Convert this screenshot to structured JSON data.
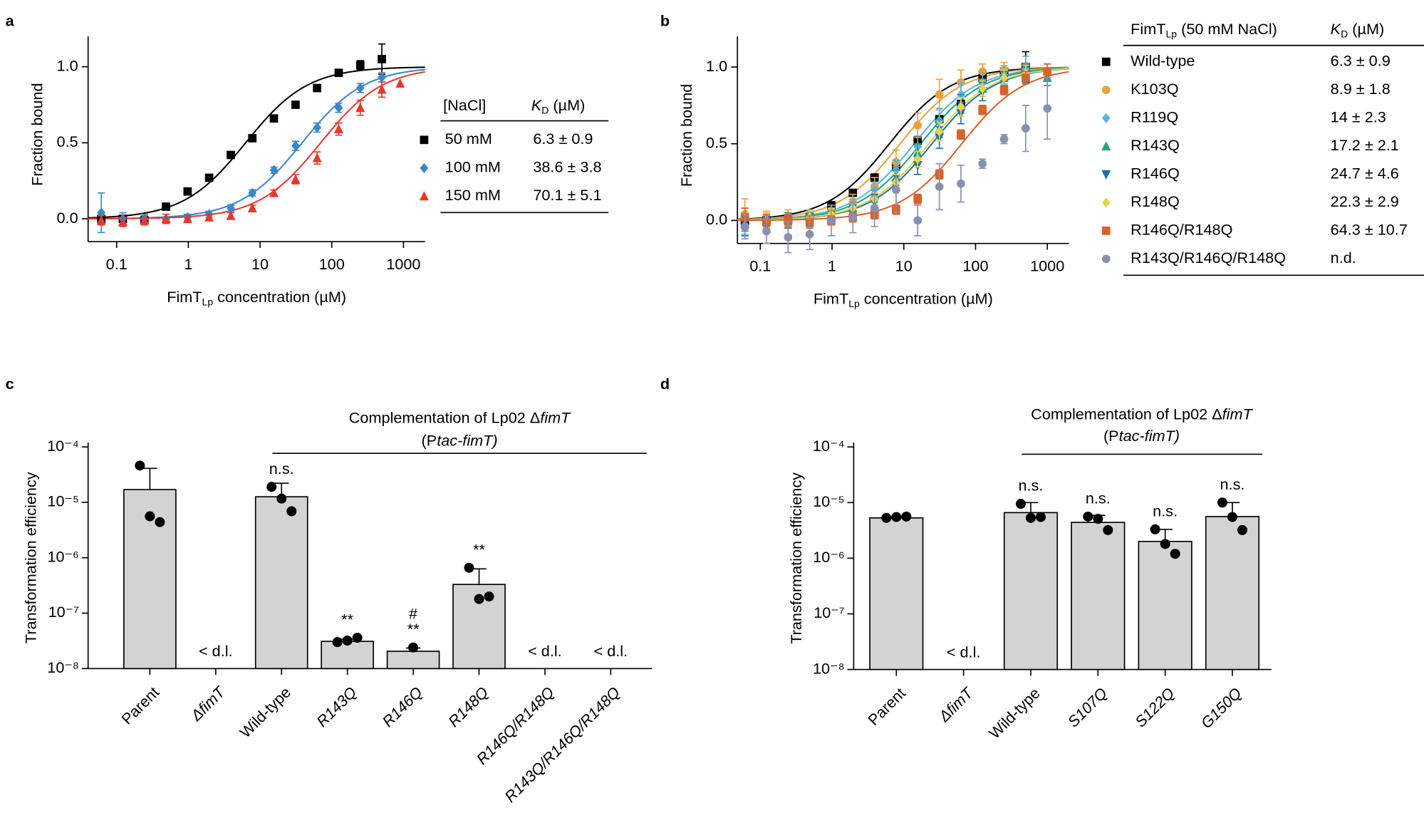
{
  "chart_data": [
    {
      "type": "scatter",
      "panel_label": "a",
      "x_label": {
        "main": "FimT",
        "sub": "Lp",
        "rest": " concentration (µM)"
      },
      "y_label": "Fraction bound",
      "x_log": true,
      "xlim": [
        0.04,
        2000
      ],
      "xticks": [
        0.1,
        1,
        10,
        100,
        1000
      ],
      "ylim": [
        -0.15,
        1.2
      ],
      "yticks": [
        {
          "value": 0,
          "label": "0.0"
        },
        {
          "value": 0.5,
          "label": "0.5"
        },
        {
          "value": 1,
          "label": "1.0"
        }
      ],
      "table_headers": [
        "[NaCl]",
        {
          "main": "K",
          "sub": "D",
          "rest": " (µM)"
        }
      ],
      "series": [
        {
          "name": "50 mM",
          "color": "#000000",
          "marker": "square",
          "kd": 6.3,
          "kd_label": "6.3 ± 0.9",
          "x": [
            0.061,
            0.122,
            0.244,
            0.488,
            0.977,
            1.95,
            3.91,
            7.81,
            15.6,
            31.3,
            62.5,
            125,
            250,
            500
          ],
          "values": [
            0.0,
            0.0,
            -0.01,
            0.08,
            0.18,
            0.27,
            0.42,
            0.53,
            0.66,
            0.75,
            0.86,
            0.96,
            1.01,
            1.05
          ],
          "errors": [
            0.02,
            0.02,
            0.02,
            0.02,
            0.02,
            0.02,
            0.02,
            0.02,
            0.02,
            0.02,
            0.02,
            0.02,
            0.03,
            0.1
          ]
        },
        {
          "name": "100 mM",
          "color": "#3a86c8",
          "marker": "diamond",
          "kd": 38.6,
          "kd_label": "38.6 ± 3.8",
          "x": [
            0.061,
            0.122,
            0.244,
            0.488,
            0.977,
            1.95,
            3.91,
            7.81,
            15.6,
            31.3,
            62.5,
            125,
            250,
            500
          ],
          "values": [
            0.04,
            0.0,
            0.0,
            0.0,
            0.01,
            0.03,
            0.07,
            0.17,
            0.32,
            0.48,
            0.6,
            0.73,
            0.86,
            0.93
          ],
          "errors": [
            0.13,
            0.04,
            0.03,
            0.03,
            0.02,
            0.02,
            0.02,
            0.02,
            0.02,
            0.03,
            0.03,
            0.03,
            0.03,
            0.03
          ]
        },
        {
          "name": "150 mM",
          "color": "#e8382c",
          "marker": "triangle",
          "kd": 70.1,
          "kd_label": "70.1 ± 5.1",
          "x": [
            0.061,
            0.122,
            0.244,
            0.488,
            0.977,
            1.95,
            3.91,
            7.81,
            15.6,
            31.3,
            62.5,
            125,
            250,
            500,
            900
          ],
          "values": [
            -0.01,
            -0.02,
            -0.01,
            0.0,
            0.0,
            0.01,
            0.02,
            0.07,
            0.17,
            0.26,
            0.4,
            0.59,
            0.73,
            0.85,
            0.89
          ],
          "errors": [
            0.03,
            0.03,
            0.03,
            0.03,
            0.02,
            0.02,
            0.02,
            0.02,
            0.02,
            0.03,
            0.04,
            0.04,
            0.05,
            0.05,
            null
          ]
        }
      ]
    },
    {
      "type": "scatter",
      "panel_label": "b",
      "x_label": {
        "main": "FimT",
        "sub": "Lp",
        "rest": " concentration (µM)"
      },
      "y_label": "Fraction bound",
      "x_log": true,
      "xlim": [
        0.048,
        2000
      ],
      "xticks": [
        0.1,
        1,
        10,
        100,
        1000
      ],
      "ylim": [
        -0.15,
        1.2
      ],
      "yticks": [
        {
          "value": 0,
          "label": "0.0"
        },
        {
          "value": 0.5,
          "label": "0.5"
        },
        {
          "value": 1,
          "label": "1.0"
        }
      ],
      "table_headers": [
        {
          "main": "FimT",
          "sub": "Lp",
          "rest": " (50 mM NaCl)"
        },
        {
          "main": "K",
          "sub": "D",
          "rest": " (µM)"
        }
      ],
      "x": [
        0.061,
        0.122,
        0.244,
        0.488,
        0.977,
        1.95,
        3.91,
        7.81,
        15.6,
        31.3,
        62.5,
        125,
        250,
        500,
        1000
      ],
      "series": [
        {
          "name": "Wild-type",
          "color": "#000000",
          "marker": "square",
          "kd": 6.3,
          "kd_label": "6.3 ± 0.9",
          "values": [
            0.0,
            0.0,
            0.0,
            0.02,
            0.1,
            0.18,
            0.28,
            0.35,
            0.52,
            0.66,
            0.76,
            0.93,
            0.97,
            1.0,
            null
          ],
          "errors": [
            0.03,
            0.03,
            0.02,
            0.02,
            0.02,
            0.02,
            0.02,
            0.02,
            0.02,
            0.02,
            0.02,
            0.02,
            0.02,
            0.1,
            null
          ]
        },
        {
          "name": "K103Q",
          "color": "#e8a23a",
          "marker": "circle",
          "kd": 8.9,
          "kd_label": "8.9 ± 1.8",
          "values": [
            0.04,
            0.0,
            0.02,
            0.03,
            0.06,
            0.12,
            0.22,
            0.38,
            0.62,
            0.82,
            0.9,
            0.97,
            0.98,
            0.97,
            null
          ],
          "errors": [
            0.1,
            0.06,
            0.05,
            0.04,
            0.04,
            0.05,
            0.06,
            0.08,
            0.08,
            0.1,
            0.08,
            0.05,
            0.05,
            0.05,
            null
          ]
        },
        {
          "name": "R119Q",
          "color": "#59b4e0",
          "marker": "diamond",
          "kd": 14,
          "kd_label": "14 ± 2.3",
          "values": [
            -0.03,
            -0.02,
            0.0,
            0.01,
            0.04,
            0.1,
            0.2,
            0.33,
            0.48,
            0.65,
            0.82,
            0.9,
            0.95,
            0.99,
            0.97
          ],
          "errors": [
            0.06,
            0.05,
            0.05,
            0.04,
            0.04,
            0.04,
            0.05,
            0.06,
            0.07,
            0.08,
            0.08,
            0.06,
            0.06,
            0.08,
            0.05
          ]
        },
        {
          "name": "R143Q",
          "color": "#1fa57f",
          "marker": "triangle",
          "kd": 17.2,
          "kd_label": "17.2 ± 2.1",
          "values": [
            -0.02,
            0.0,
            0.01,
            0.02,
            0.03,
            0.08,
            0.16,
            0.28,
            0.44,
            0.6,
            0.76,
            0.86,
            0.93,
            0.96,
            0.93
          ],
          "errors": [
            0.05,
            0.04,
            0.04,
            0.03,
            0.03,
            0.04,
            0.04,
            0.05,
            0.06,
            0.06,
            0.06,
            0.05,
            0.05,
            0.05,
            0.05
          ]
        },
        {
          "name": "R146Q",
          "color": "#1e6fae",
          "marker": "triangle-down",
          "kd": 24.7,
          "kd_label": "24.7 ± 4.6",
          "values": [
            -0.05,
            -0.03,
            -0.01,
            0.0,
            0.02,
            0.06,
            0.12,
            0.24,
            0.36,
            0.54,
            0.7,
            0.84,
            0.92,
            0.95,
            null
          ],
          "errors": [
            0.05,
            0.05,
            0.04,
            0.04,
            0.04,
            0.04,
            0.05,
            0.05,
            0.06,
            0.07,
            0.07,
            0.06,
            0.05,
            0.05,
            null
          ]
        },
        {
          "name": "R148Q",
          "color": "#e3d44a",
          "marker": "diamond",
          "kd": 22.3,
          "kd_label": "22.3 ± 2.9",
          "values": [
            0.02,
            0.0,
            0.0,
            0.02,
            0.04,
            0.08,
            0.14,
            0.25,
            0.4,
            0.58,
            0.74,
            0.86,
            0.93,
            0.96,
            null
          ],
          "errors": [
            0.06,
            0.05,
            0.04,
            0.04,
            0.04,
            0.04,
            0.04,
            0.05,
            0.05,
            0.06,
            0.06,
            0.05,
            0.05,
            0.05,
            null
          ]
        },
        {
          "name": "R146Q/R148Q",
          "color": "#d9622b",
          "marker": "square",
          "kd": 64.3,
          "kd_label": "64.3 ± 10.7",
          "values": [
            0.02,
            -0.01,
            0.0,
            -0.01,
            0.0,
            0.02,
            0.04,
            0.07,
            0.14,
            0.3,
            0.56,
            0.72,
            0.85,
            0.93,
            0.97
          ],
          "errors": [
            0.06,
            0.05,
            0.04,
            0.04,
            0.03,
            0.03,
            0.03,
            0.03,
            0.03,
            0.03,
            0.03,
            0.03,
            0.03,
            0.04,
            0.05
          ]
        },
        {
          "name": "R143Q/R146Q/R148Q",
          "color": "#8a8fb0",
          "marker": "circle",
          "kd_label": "n.d.",
          "values": [
            -0.04,
            -0.07,
            -0.11,
            -0.09,
            0.0,
            0.02,
            0.08,
            0.2,
            0.0,
            0.22,
            0.24,
            0.37,
            0.53,
            0.6,
            0.73
          ],
          "errors": [
            0.08,
            0.08,
            0.1,
            0.1,
            0.1,
            0.1,
            0.12,
            0.15,
            0.1,
            0.15,
            0.12,
            0.03,
            0.03,
            0.15,
            0.2
          ]
        }
      ]
    },
    {
      "type": "bar",
      "panel_label": "c",
      "y_label": "Transformation efficiency",
      "y_log": true,
      "ylim": [
        1e-08,
        0.0001
      ],
      "yticks": [
        {
          "value": 1e-08,
          "label": "10⁻⁸"
        },
        {
          "value": 1e-07,
          "label": "10⁻⁷"
        },
        {
          "value": 1e-06,
          "label": "10⁻⁶"
        },
        {
          "value": 1e-05,
          "label": "10⁻⁵"
        },
        {
          "value": 0.0001,
          "label": "10⁻⁴"
        }
      ],
      "bracket_text": [
        [
          "Complementation of Lp02 Δ",
          "fimT"
        ],
        [
          "(P",
          "tac-fimT)"
        ]
      ],
      "categories": [
        "Parent",
        "ΔfimT",
        "Wild-type",
        "R143Q",
        "R146Q",
        "R148Q",
        "R146Q/R148Q",
        "R143Q/R146Q/R148Q"
      ],
      "category_italic": [
        false,
        true,
        false,
        true,
        true,
        true,
        true,
        true
      ],
      "color": "#d3d3d3",
      "values": [
        1.7e-05,
        null,
        1.26e-05,
        3.1e-08,
        2.05e-08,
        3.3e-07,
        null,
        null
      ],
      "value_labels": [
        null,
        "< d.l.",
        null,
        null,
        null,
        null,
        "< d.l.",
        "< d.l."
      ],
      "errors": [
        2.4e-05,
        null,
        9.5e-06,
        3e-09,
        3e-09,
        3e-07,
        null,
        null
      ],
      "points": [
        [
          4.6e-05,
          5.6e-06,
          4.4e-06
        ],
        null,
        [
          1.9e-05,
          1.17e-05,
          6.9e-06
        ],
        [
          3e-08,
          3.2e-08,
          3.6e-08
        ],
        [
          2.4e-08
        ],
        [
          6.6e-07,
          1.8e-07,
          2e-07
        ],
        null,
        null
      ],
      "annotations": [
        null,
        null,
        [
          "n.s."
        ],
        [
          "**"
        ],
        [
          "#",
          "**"
        ],
        [
          "**"
        ],
        null,
        null
      ]
    },
    {
      "type": "bar",
      "panel_label": "d",
      "y_label": "Transformation efficiency",
      "y_log": true,
      "ylim": [
        1e-08,
        0.0001
      ],
      "yticks": [
        {
          "value": 1e-08,
          "label": "10⁻⁸"
        },
        {
          "value": 1e-07,
          "label": "10⁻⁷"
        },
        {
          "value": 1e-06,
          "label": "10⁻⁶"
        },
        {
          "value": 1e-05,
          "label": "10⁻⁵"
        },
        {
          "value": 0.0001,
          "label": "10⁻⁴"
        }
      ],
      "bracket_text": [
        [
          "Complementation of Lp02 Δ",
          "fimT"
        ],
        [
          "(P",
          "tac-fimT)"
        ]
      ],
      "categories": [
        "Parent",
        "ΔfimT",
        "Wild-type",
        "S107Q",
        "S122Q",
        "G150Q"
      ],
      "category_italic": [
        false,
        true,
        false,
        true,
        true,
        true
      ],
      "color": "#d3d3d3",
      "values": [
        5.3e-06,
        null,
        6.6e-06,
        4.4e-06,
        2e-06,
        5.6e-06
      ],
      "value_labels": [
        null,
        "< d.l.",
        null,
        null,
        null,
        null
      ],
      "errors": [
        2e-07,
        null,
        3.4e-06,
        1.5e-06,
        1.3e-06,
        4.4e-06
      ],
      "points": [
        [
          5.3e-06,
          5.5e-06,
          5.6e-06
        ],
        null,
        [
          9.5e-06,
          5.3e-06,
          5.5e-06
        ],
        [
          5.6e-06,
          5.1e-06,
          3.2e-06
        ],
        [
          3.3e-06,
          1.8e-06,
          1.2e-06
        ],
        [
          1e-05,
          5.5e-06,
          3.2e-06
        ]
      ],
      "annotations": [
        null,
        null,
        [
          "n.s."
        ],
        [
          "n.s."
        ],
        [
          "n.s."
        ],
        [
          "n.s."
        ]
      ]
    }
  ]
}
